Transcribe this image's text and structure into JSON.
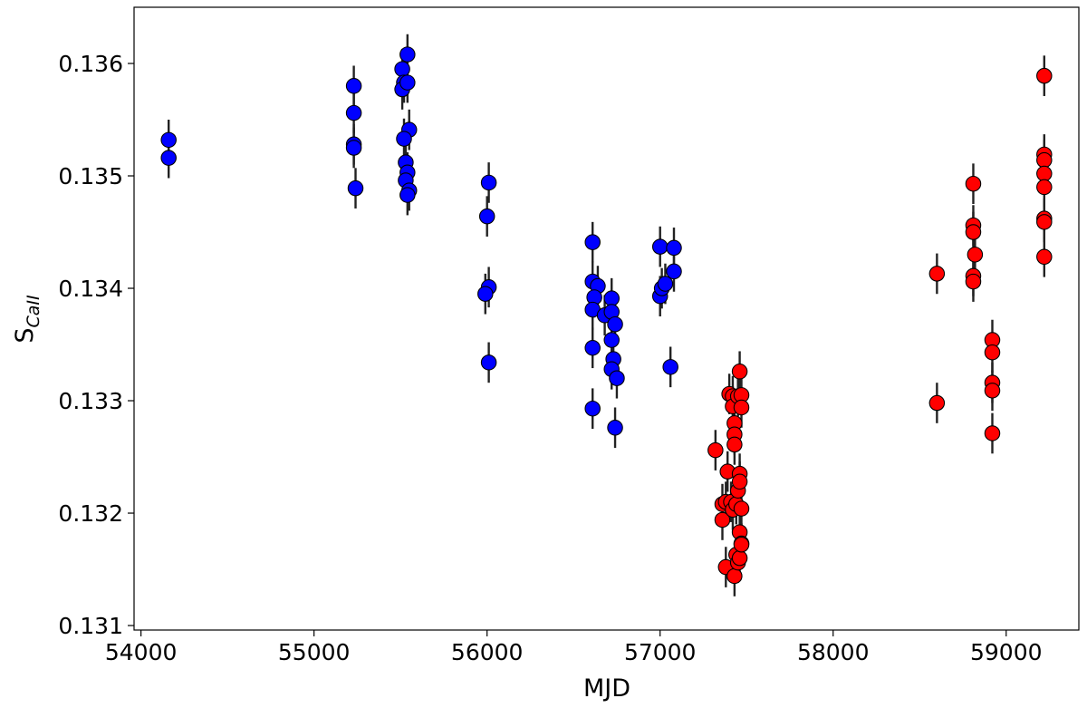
{
  "chart_data": {
    "type": "scatter",
    "xlabel": "MJD",
    "ylabel": "S",
    "ylabel_sub": "CaII",
    "xlim": [
      53960,
      59420
    ],
    "ylim": [
      130.96,
      136.5
    ],
    "y_scale_note": "values x 0.001",
    "grid": false,
    "x_ticks": [
      54000,
      55000,
      56000,
      57000,
      58000,
      59000
    ],
    "x_tick_labels": [
      "54000",
      "55000",
      "56000",
      "57000",
      "58000",
      "59000"
    ],
    "y_ticks": [
      131,
      132,
      133,
      134,
      135,
      136
    ],
    "y_tick_labels": [
      "0.131",
      "0.132",
      "0.133",
      "0.134",
      "0.135",
      "0.136"
    ],
    "series": [
      {
        "color": "#0000ff",
        "points": [
          [
            54160,
            135.32,
            0.18
          ],
          [
            54160,
            135.16,
            0.18
          ],
          [
            55230,
            135.8,
            0.18
          ],
          [
            55230,
            135.56,
            0.18
          ],
          [
            55230,
            135.28,
            0.18
          ],
          [
            55230,
            135.25,
            0.18
          ],
          [
            55240,
            134.89,
            0.18
          ],
          [
            55510,
            135.95,
            0.18
          ],
          [
            55520,
            135.83,
            0.18
          ],
          [
            55510,
            135.77,
            0.18
          ],
          [
            55540,
            136.08,
            0.18
          ],
          [
            55540,
            135.83,
            0.18
          ],
          [
            55550,
            135.41,
            0.18
          ],
          [
            55520,
            135.33,
            0.18
          ],
          [
            55530,
            135.12,
            0.18
          ],
          [
            55540,
            135.03,
            0.18
          ],
          [
            55530,
            134.96,
            0.18
          ],
          [
            55550,
            134.87,
            0.18
          ],
          [
            55540,
            134.83,
            0.18
          ],
          [
            56010,
            134.94,
            0.18
          ],
          [
            56000,
            134.64,
            0.18
          ],
          [
            56010,
            134.01,
            0.18
          ],
          [
            55990,
            133.95,
            0.18
          ],
          [
            56010,
            133.34,
            0.18
          ],
          [
            56610,
            134.41,
            0.18
          ],
          [
            56610,
            134.06,
            0.18
          ],
          [
            56640,
            134.02,
            0.18
          ],
          [
            56620,
            133.92,
            0.18
          ],
          [
            56610,
            133.81,
            0.18
          ],
          [
            56610,
            133.47,
            0.18
          ],
          [
            56610,
            132.93,
            0.18
          ],
          [
            56680,
            133.76,
            0.18
          ],
          [
            56720,
            133.91,
            0.18
          ],
          [
            56720,
            133.79,
            0.18
          ],
          [
            56740,
            133.68,
            0.18
          ],
          [
            56720,
            133.54,
            0.18
          ],
          [
            56730,
            133.37,
            0.18
          ],
          [
            56720,
            133.28,
            0.18
          ],
          [
            56750,
            133.2,
            0.18
          ],
          [
            56740,
            132.76,
            0.18
          ],
          [
            57000,
            134.37,
            0.18
          ],
          [
            57000,
            133.93,
            0.18
          ],
          [
            57010,
            134.0,
            0.18
          ],
          [
            57030,
            134.04,
            0.18
          ],
          [
            57080,
            134.36,
            0.18
          ],
          [
            57080,
            134.15,
            0.18
          ],
          [
            57060,
            133.3,
            0.18
          ]
        ]
      },
      {
        "color": "#ff0000",
        "points": [
          [
            57320,
            132.56,
            0.18
          ],
          [
            57360,
            132.08,
            0.18
          ],
          [
            57360,
            131.94,
            0.18
          ],
          [
            57380,
            132.1,
            0.18
          ],
          [
            57380,
            131.52,
            0.18
          ],
          [
            57390,
            132.37,
            0.18
          ],
          [
            57400,
            133.06,
            0.18
          ],
          [
            57420,
            133.04,
            0.18
          ],
          [
            57420,
            132.95,
            0.18
          ],
          [
            57410,
            132.1,
            0.18
          ],
          [
            57420,
            132.03,
            0.18
          ],
          [
            57430,
            132.8,
            0.18
          ],
          [
            57430,
            132.7,
            0.18
          ],
          [
            57430,
            132.61,
            0.18
          ],
          [
            57430,
            131.44,
            0.18
          ],
          [
            57440,
            132.08,
            0.18
          ],
          [
            57440,
            131.63,
            0.18
          ],
          [
            57450,
            133.04,
            0.18
          ],
          [
            57450,
            132.2,
            0.18
          ],
          [
            57450,
            131.56,
            0.18
          ],
          [
            57460,
            133.26,
            0.18
          ],
          [
            57460,
            132.35,
            0.18
          ],
          [
            57460,
            132.28,
            0.18
          ],
          [
            57460,
            131.83,
            0.18
          ],
          [
            57460,
            131.6,
            0.18
          ],
          [
            57470,
            133.05,
            0.18
          ],
          [
            57470,
            132.94,
            0.18
          ],
          [
            57470,
            132.04,
            0.18
          ],
          [
            57470,
            131.73,
            0.18
          ],
          [
            57470,
            131.72,
            0.18
          ],
          [
            58600,
            134.13,
            0.18
          ],
          [
            58600,
            132.98,
            0.18
          ],
          [
            58810,
            134.93,
            0.18
          ],
          [
            58810,
            134.56,
            0.18
          ],
          [
            58810,
            134.5,
            0.18
          ],
          [
            58820,
            134.3,
            0.18
          ],
          [
            58810,
            134.11,
            0.18
          ],
          [
            58810,
            134.06,
            0.18
          ],
          [
            58920,
            133.54,
            0.18
          ],
          [
            58920,
            133.43,
            0.18
          ],
          [
            58920,
            133.16,
            0.18
          ],
          [
            58920,
            133.09,
            0.18
          ],
          [
            58920,
            132.71,
            0.18
          ],
          [
            59220,
            135.89,
            0.18
          ],
          [
            59220,
            135.19,
            0.18
          ],
          [
            59220,
            135.14,
            0.18
          ],
          [
            59220,
            135.02,
            0.18
          ],
          [
            59220,
            134.9,
            0.18
          ],
          [
            59220,
            134.62,
            0.18
          ],
          [
            59220,
            134.59,
            0.18
          ],
          [
            59220,
            134.28,
            0.18
          ]
        ]
      }
    ]
  }
}
